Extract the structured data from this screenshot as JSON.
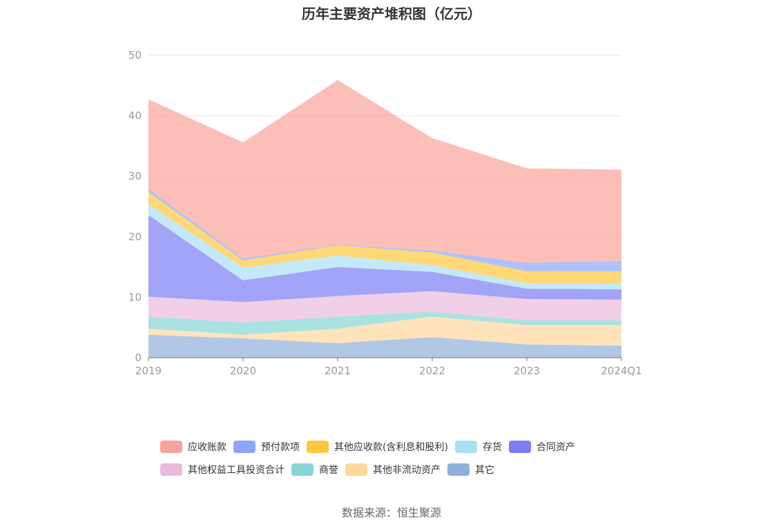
{
  "title": "历年主要资产堆积图（亿元）",
  "source": "数据来源：恒生聚源",
  "chart_data": {
    "type": "area",
    "stacked": true,
    "title": "历年主要资产堆积图（亿元）",
    "categories": [
      "2019",
      "2020",
      "2021",
      "2022",
      "2023",
      "2024Q1"
    ],
    "ylim": [
      0,
      50
    ],
    "yticks": [
      0,
      10,
      20,
      30,
      40,
      50
    ],
    "grid": true,
    "legend_position": "bottom",
    "series": [
      {
        "name": "其它",
        "color": "#8fb0dc",
        "values": [
          3.8,
          3.2,
          2.4,
          3.4,
          2.2,
          2.0
        ]
      },
      {
        "name": "其他非流动资产",
        "color": "#ffd79c",
        "values": [
          1.0,
          0.6,
          2.4,
          3.4,
          3.2,
          3.4
        ]
      },
      {
        "name": "商誉",
        "color": "#86d6d6",
        "values": [
          2.0,
          2.0,
          2.0,
          0.8,
          0.8,
          0.8
        ]
      },
      {
        "name": "其他权益工具投资合计",
        "color": "#ebbbdd",
        "values": [
          3.3,
          3.4,
          3.4,
          3.4,
          3.5,
          3.4
        ]
      },
      {
        "name": "合同资产",
        "color": "#7b7ef4",
        "values": [
          13.5,
          3.6,
          4.8,
          3.2,
          1.7,
          1.7
        ]
      },
      {
        "name": "存货",
        "color": "#a9e0f7",
        "values": [
          1.8,
          2.1,
          1.9,
          1.1,
          0.9,
          0.9
        ]
      },
      {
        "name": "其他应收款(含利息和股利)",
        "color": "#ffc83d",
        "values": [
          2.0,
          1.2,
          1.7,
          2.1,
          2.0,
          2.1
        ]
      },
      {
        "name": "预付款项",
        "color": "#8ba6f9",
        "values": [
          0.5,
          0.3,
          0.1,
          0.3,
          1.4,
          1.7
        ]
      },
      {
        "name": "应收账款",
        "color": "#f9a49a",
        "values": [
          14.8,
          19.2,
          27.2,
          18.6,
          15.6,
          15.1
        ]
      }
    ],
    "legend": [
      [
        "应收账款",
        "预付款项",
        "其他应收款(含利息和股利)",
        "存货",
        "合同资产"
      ],
      [
        "其他权益工具投资合计",
        "商誉",
        "其他非流动资产",
        "其它"
      ]
    ]
  }
}
